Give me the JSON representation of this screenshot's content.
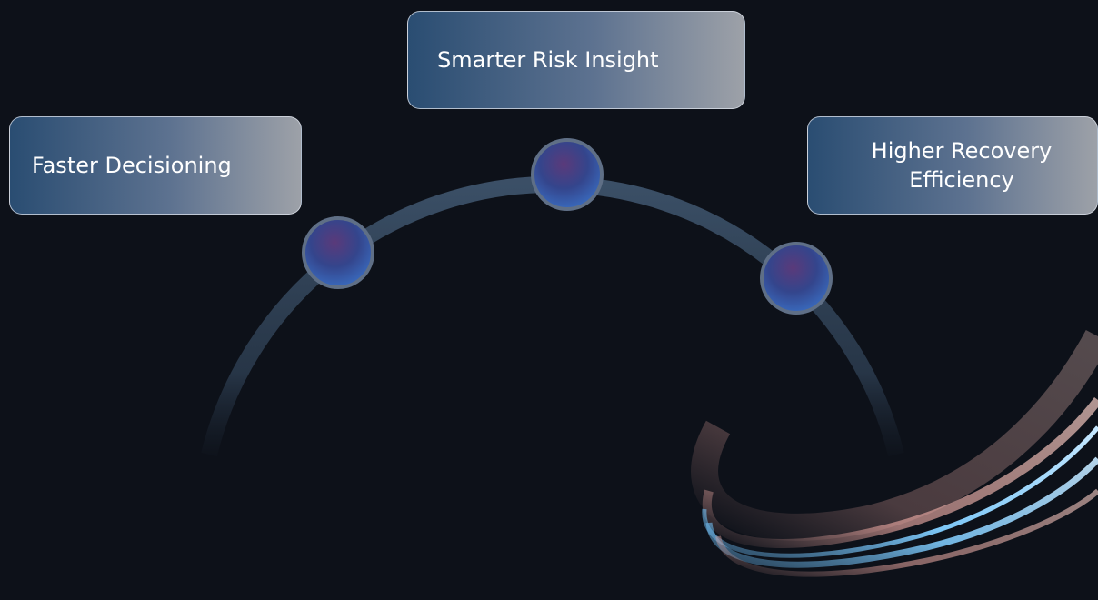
{
  "cards": [
    {
      "label": "Faster Decisioning"
    },
    {
      "label": "Smarter Risk Insight"
    },
    {
      "label": "Higher Recovery Efficiency"
    }
  ]
}
